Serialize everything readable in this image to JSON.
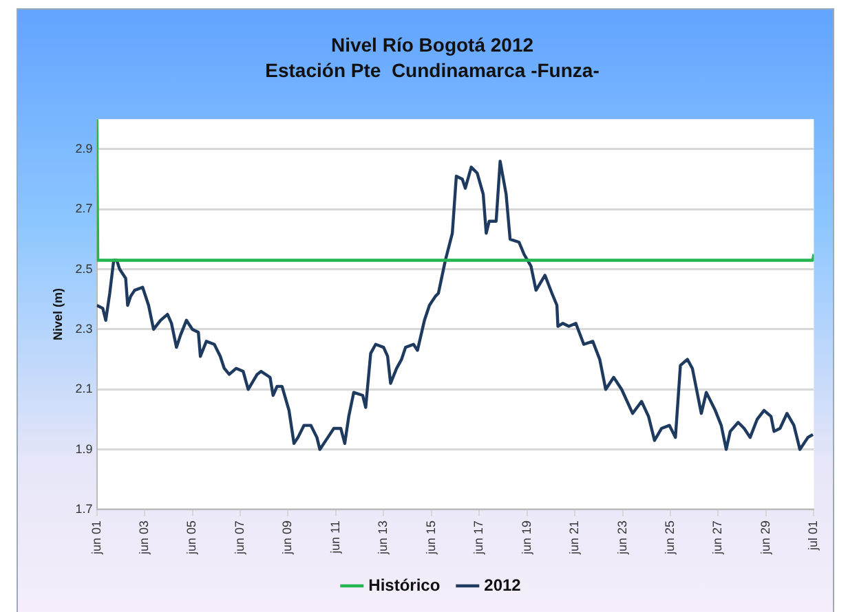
{
  "chart_data": {
    "type": "line",
    "title": "Nivel Río Bogotá 2012",
    "subtitle": "Estación Pte  Cundinamarca -Funza-",
    "ylabel": "Nivel (m)",
    "xlim": [
      "2012-06-01",
      "2012-07-01"
    ],
    "xticks": [
      {
        "value": "2012-06-01",
        "label": "jun 01"
      },
      {
        "value": "2012-06-03",
        "label": "jun 03"
      },
      {
        "value": "2012-06-05",
        "label": "jun 05"
      },
      {
        "value": "2012-06-07",
        "label": "jun 07"
      },
      {
        "value": "2012-06-09",
        "label": "jun 09"
      },
      {
        "value": "2012-06-11",
        "label": "jun 11"
      },
      {
        "value": "2012-06-13",
        "label": "jun 13"
      },
      {
        "value": "2012-06-15",
        "label": "jun 15"
      },
      {
        "value": "2012-06-17",
        "label": "jun 17"
      },
      {
        "value": "2012-06-19",
        "label": "jun 19"
      },
      {
        "value": "2012-06-21",
        "label": "jun 21"
      },
      {
        "value": "2012-06-23",
        "label": "jun 23"
      },
      {
        "value": "2012-06-25",
        "label": "jun 25"
      },
      {
        "value": "2012-06-27",
        "label": "jun 27"
      },
      {
        "value": "2012-06-29",
        "label": "jun 29"
      },
      {
        "value": "2012-07-01",
        "label": "jul 01"
      }
    ],
    "ylim": [
      1.7,
      3.0
    ],
    "yticks": [
      1.7,
      1.9,
      2.1,
      2.3,
      2.5,
      2.7,
      2.9
    ],
    "grid": "y",
    "legend": "bottom",
    "marker": "none",
    "line_style": "solid",
    "series": [
      {
        "name": "Histórico",
        "color": "#22b550",
        "x": [
          "2012-06-01T00:00",
          "2012-06-01T01:00",
          "2012-06-30T23:00",
          "2012-07-01T00:00"
        ],
        "values": [
          3.0,
          2.53,
          2.53,
          2.55
        ]
      },
      {
        "name": "2012",
        "color": "#1f3a5f",
        "x": [
          "2012-06-01T00:00",
          "2012-06-01T06:00",
          "2012-06-01T09:00",
          "2012-06-01T13:00",
          "2012-06-01T17:00",
          "2012-06-01T20:00",
          "2012-06-01T23:00",
          "2012-06-02T05:00",
          "2012-06-02T07:00",
          "2012-06-02T10:00",
          "2012-06-02T14:00",
          "2012-06-02T22:00",
          "2012-06-03T04:00",
          "2012-06-03T09:00",
          "2012-06-03T16:00",
          "2012-06-03T23:00",
          "2012-06-04T03:00",
          "2012-06-04T08:00",
          "2012-06-04T12:00",
          "2012-06-04T18:00",
          "2012-06-05T00:00",
          "2012-06-05T06:00",
          "2012-06-05T08:00",
          "2012-06-05T14:00",
          "2012-06-05T22:00",
          "2012-06-06T04:00",
          "2012-06-06T08:00",
          "2012-06-06T13:00",
          "2012-06-06T20:00",
          "2012-06-07T03:00",
          "2012-06-07T08:00",
          "2012-06-07T17:00",
          "2012-06-07T21:00",
          "2012-06-08T06:00",
          "2012-06-08T09:00",
          "2012-06-08T13:00",
          "2012-06-08T18:00",
          "2012-06-09T01:00",
          "2012-06-09T06:00",
          "2012-06-09T10:00",
          "2012-06-09T16:00",
          "2012-06-09T23:00",
          "2012-06-10T05:00",
          "2012-06-10T08:00",
          "2012-06-10T16:00",
          "2012-06-10T22:00",
          "2012-06-11T05:00",
          "2012-06-11T09:00",
          "2012-06-11T13:00",
          "2012-06-11T18:00",
          "2012-06-12T03:00",
          "2012-06-12T06:00",
          "2012-06-12T11:00",
          "2012-06-12T16:00",
          "2012-06-13T00:00",
          "2012-06-13T04:00",
          "2012-06-13T07:00",
          "2012-06-13T13:00",
          "2012-06-13T18:00",
          "2012-06-13T22:00",
          "2012-06-14T06:00",
          "2012-06-14T10:00",
          "2012-06-14T17:00",
          "2012-06-14T22:00",
          "2012-06-15T04:00",
          "2012-06-15T07:00",
          "2012-06-15T14:00",
          "2012-06-15T21:00",
          "2012-06-16T01:00",
          "2012-06-16T07:00",
          "2012-06-16T10:00",
          "2012-06-16T16:00",
          "2012-06-16T22:00",
          "2012-06-17T04:00",
          "2012-06-17T07:00",
          "2012-06-17T10:00",
          "2012-06-17T17:00",
          "2012-06-17T21:00",
          "2012-06-18T03:00",
          "2012-06-18T07:00",
          "2012-06-18T16:00",
          "2012-06-18T21:00",
          "2012-06-19T04:00",
          "2012-06-19T09:00",
          "2012-06-19T18:00",
          "2012-06-20T01:00",
          "2012-06-20T06:00",
          "2012-06-20T07:00",
          "2012-06-20T12:00",
          "2012-06-20T18:00",
          "2012-06-21T01:00",
          "2012-06-21T09:00",
          "2012-06-21T18:00",
          "2012-06-22T01:00",
          "2012-06-22T07:00",
          "2012-06-22T15:00",
          "2012-06-22T23:00",
          "2012-06-23T10:00",
          "2012-06-23T19:00",
          "2012-06-24T02:00",
          "2012-06-24T08:00",
          "2012-06-24T15:00",
          "2012-06-24T23:00",
          "2012-06-25T05:00",
          "2012-06-25T10:00",
          "2012-06-25T17:00",
          "2012-06-25T22:00",
          "2012-06-26T07:00",
          "2012-06-26T12:00",
          "2012-06-26T21:00",
          "2012-06-27T03:00",
          "2012-06-27T08:00",
          "2012-06-27T12:00",
          "2012-06-27T20:00",
          "2012-06-28T02:00",
          "2012-06-28T08:00",
          "2012-06-28T15:00",
          "2012-06-28T22:00",
          "2012-06-29T05:00",
          "2012-06-29T08:00",
          "2012-06-29T14:00",
          "2012-06-29T21:00",
          "2012-06-30T04:00",
          "2012-06-30T10:00",
          "2012-06-30T18:00",
          "2012-06-30T23:00"
        ],
        "values": [
          2.38,
          2.37,
          2.33,
          2.42,
          2.53,
          2.53,
          2.5,
          2.47,
          2.38,
          2.41,
          2.43,
          2.44,
          2.38,
          2.3,
          2.33,
          2.35,
          2.32,
          2.24,
          2.28,
          2.33,
          2.3,
          2.29,
          2.21,
          2.26,
          2.25,
          2.21,
          2.17,
          2.15,
          2.17,
          2.16,
          2.1,
          2.15,
          2.16,
          2.14,
          2.08,
          2.11,
          2.11,
          2.03,
          1.92,
          1.94,
          1.98,
          1.98,
          1.94,
          1.9,
          1.94,
          1.97,
          1.97,
          1.92,
          2.01,
          2.09,
          2.08,
          2.04,
          2.22,
          2.25,
          2.24,
          2.21,
          2.12,
          2.17,
          2.2,
          2.24,
          2.25,
          2.23,
          2.33,
          2.38,
          2.41,
          2.42,
          2.53,
          2.62,
          2.81,
          2.8,
          2.77,
          2.84,
          2.82,
          2.75,
          2.62,
          2.66,
          2.66,
          2.86,
          2.75,
          2.6,
          2.59,
          2.55,
          2.51,
          2.43,
          2.48,
          2.42,
          2.38,
          2.31,
          2.32,
          2.31,
          2.32,
          2.25,
          2.26,
          2.2,
          2.1,
          2.14,
          2.1,
          2.02,
          2.06,
          2.01,
          1.93,
          1.97,
          1.98,
          1.94,
          2.18,
          2.2,
          2.17,
          2.02,
          2.09,
          2.03,
          1.98,
          1.9,
          1.96,
          1.99,
          1.97,
          1.94,
          2.0,
          2.03,
          2.01,
          1.96,
          1.97,
          2.02,
          1.98,
          1.9,
          1.94,
          1.95
        ]
      }
    ]
  }
}
